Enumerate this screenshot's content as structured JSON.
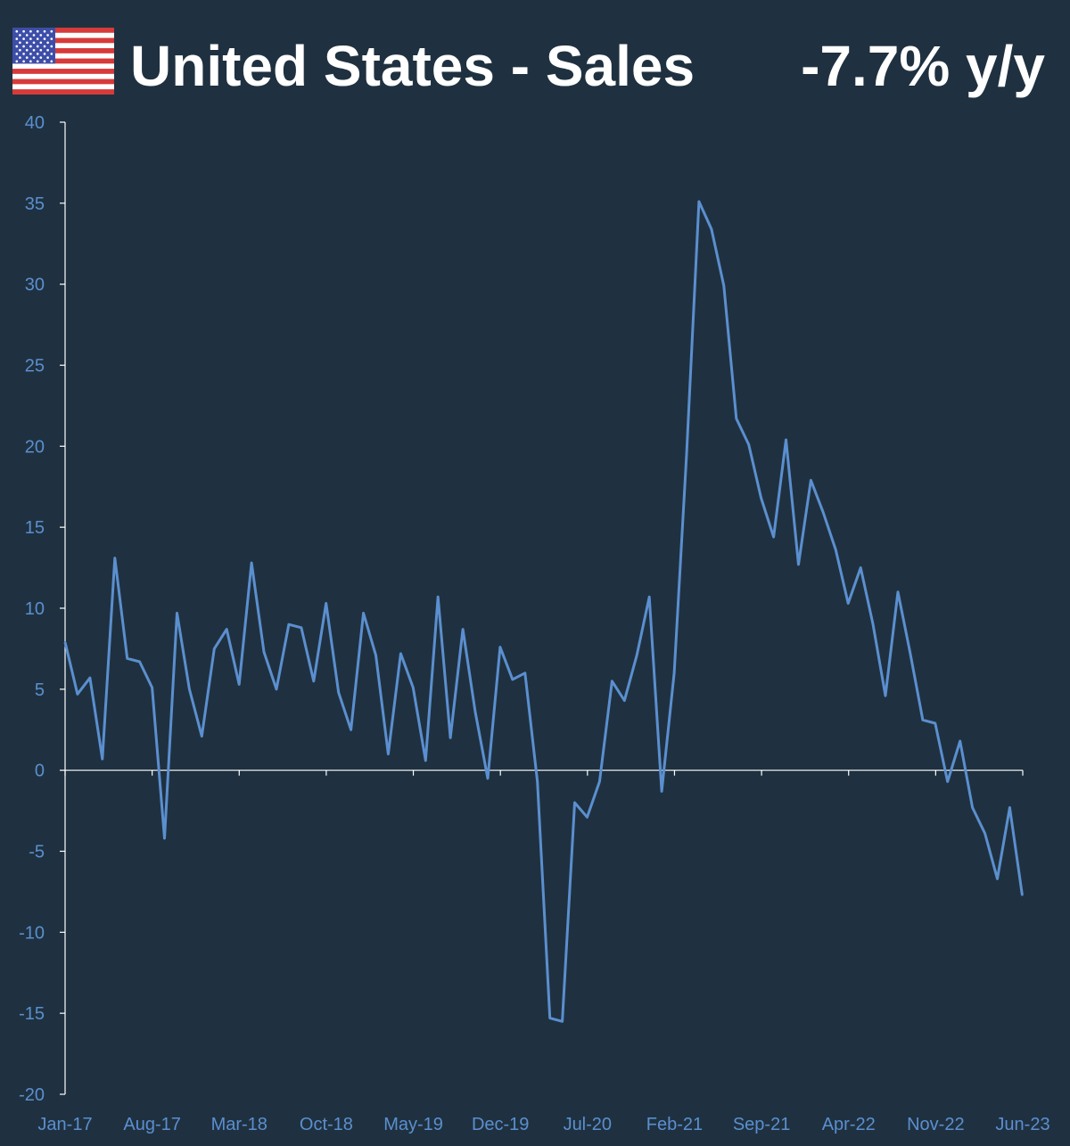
{
  "header": {
    "title": "United States - Sales",
    "headline": "-7.7% y/y",
    "flag_icon": "us-flag-icon"
  },
  "colors": {
    "background": "#1f3140",
    "line": "#5b8fcf",
    "axis": "#ffffff",
    "tick_text": "#5b8fcf",
    "title": "#ffffff"
  },
  "chart_data": {
    "type": "line",
    "title": "United States - Sales",
    "xlabel": "",
    "ylabel": "",
    "ylim": [
      -20,
      40
    ],
    "y_ticks": [
      -20,
      -15,
      -10,
      -5,
      0,
      5,
      10,
      15,
      20,
      25,
      30,
      35,
      40
    ],
    "x_tick_labels": [
      "Jan-17",
      "Aug-17",
      "Mar-18",
      "Oct-18",
      "May-19",
      "Dec-19",
      "Jul-20",
      "Feb-21",
      "Sep-21",
      "Apr-22",
      "Nov-22",
      "Jun-23"
    ],
    "grid": false,
    "legend": "none",
    "series": [
      {
        "start": "Jan-17",
        "frequency": "monthly",
        "values": [
          7.9,
          4.7,
          5.7,
          0.7,
          13.1,
          6.9,
          6.7,
          5.1,
          -4.2,
          9.7,
          5.0,
          2.1,
          7.5,
          8.7,
          5.3,
          12.8,
          7.3,
          5.0,
          9.0,
          8.8,
          5.5,
          10.3,
          4.8,
          2.5,
          9.7,
          7.1,
          1.0,
          7.2,
          5.1,
          0.6,
          10.7,
          2.0,
          8.7,
          3.6,
          -0.5,
          7.6,
          5.6,
          6.0,
          -0.7,
          -15.3,
          -15.5,
          -2.0,
          -2.9,
          -0.7,
          5.5,
          4.3,
          7.1,
          10.7,
          -1.3,
          6.0,
          19.5,
          35.1,
          33.4,
          29.9,
          21.7,
          20.1,
          16.8,
          14.4,
          20.4,
          12.7,
          17.9,
          15.9,
          13.6,
          10.3,
          12.5,
          9.0,
          4.6,
          11.0,
          7.2,
          3.1,
          2.9,
          -0.7,
          1.8,
          -2.3,
          -3.9,
          -6.7,
          -2.3,
          -7.7
        ]
      }
    ]
  }
}
